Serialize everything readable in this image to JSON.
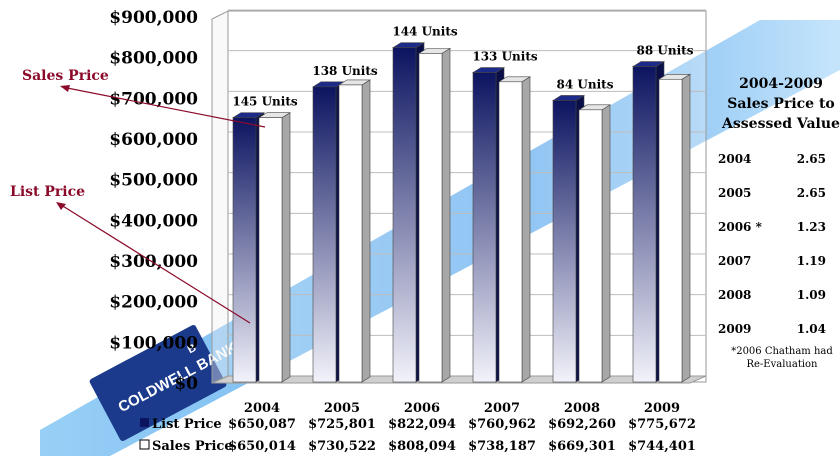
{
  "chart_data": {
    "type": "bar",
    "categories": [
      "2004",
      "2005",
      "2006",
      "2007",
      "2008",
      "2009"
    ],
    "series": [
      {
        "name": "List Price",
        "values": [
          650087,
          725801,
          822094,
          760962,
          692260,
          775672
        ],
        "value_labels": [
          "$650,087",
          "$725,801",
          "$822,094",
          "$760,962",
          "$692,260",
          "$775,672"
        ]
      },
      {
        "name": "Sales Price",
        "values": [
          650014,
          730522,
          808094,
          738187,
          669301,
          744401
        ],
        "value_labels": [
          "$650,014",
          "$730,522",
          "$808,094",
          "$738,187",
          "$669,301",
          "$744,401"
        ]
      }
    ],
    "units": [
      "145 Units",
      "138 Units",
      "144 Units",
      "133 Units",
      "84 Units",
      "88 Units"
    ],
    "y_ticks": [
      "$0",
      "$100,000",
      "$200,000",
      "$300,000",
      "$400,000",
      "$500,000",
      "$600,000",
      "$700,000",
      "$800,000",
      "$900,000"
    ],
    "ylim": [
      0,
      900000
    ],
    "grid": true,
    "legend": "bottom-left table",
    "annotations": [
      "Sales Price",
      "List Price"
    ]
  },
  "ratio_panel": {
    "title": [
      "2004-2009",
      "Sales Price to",
      "Assessed Value"
    ],
    "rows": [
      {
        "year": "2004",
        "value": "2.65"
      },
      {
        "year": "2005",
        "value": "2.65"
      },
      {
        "year": "2006 *",
        "value": "1.23"
      },
      {
        "year": "2007",
        "value": "1.19"
      },
      {
        "year": "2008",
        "value": "1.09"
      },
      {
        "year": "2009",
        "value": "1.04"
      }
    ],
    "note": [
      "*2006 Chatham had",
      "Re-Evaluation"
    ]
  },
  "watermark": {
    "brand": "COLDWELL BANKER",
    "badge": "B",
    "banner_color": "#6fb6f0",
    "card_color": "#1b3a8c"
  },
  "colors": {
    "list_dark": "#0c1460",
    "list_light": "#ffffff",
    "sales_face": "#ffffff",
    "sales_side": "#a8a8a8",
    "annotation": "#8b0a2a"
  }
}
